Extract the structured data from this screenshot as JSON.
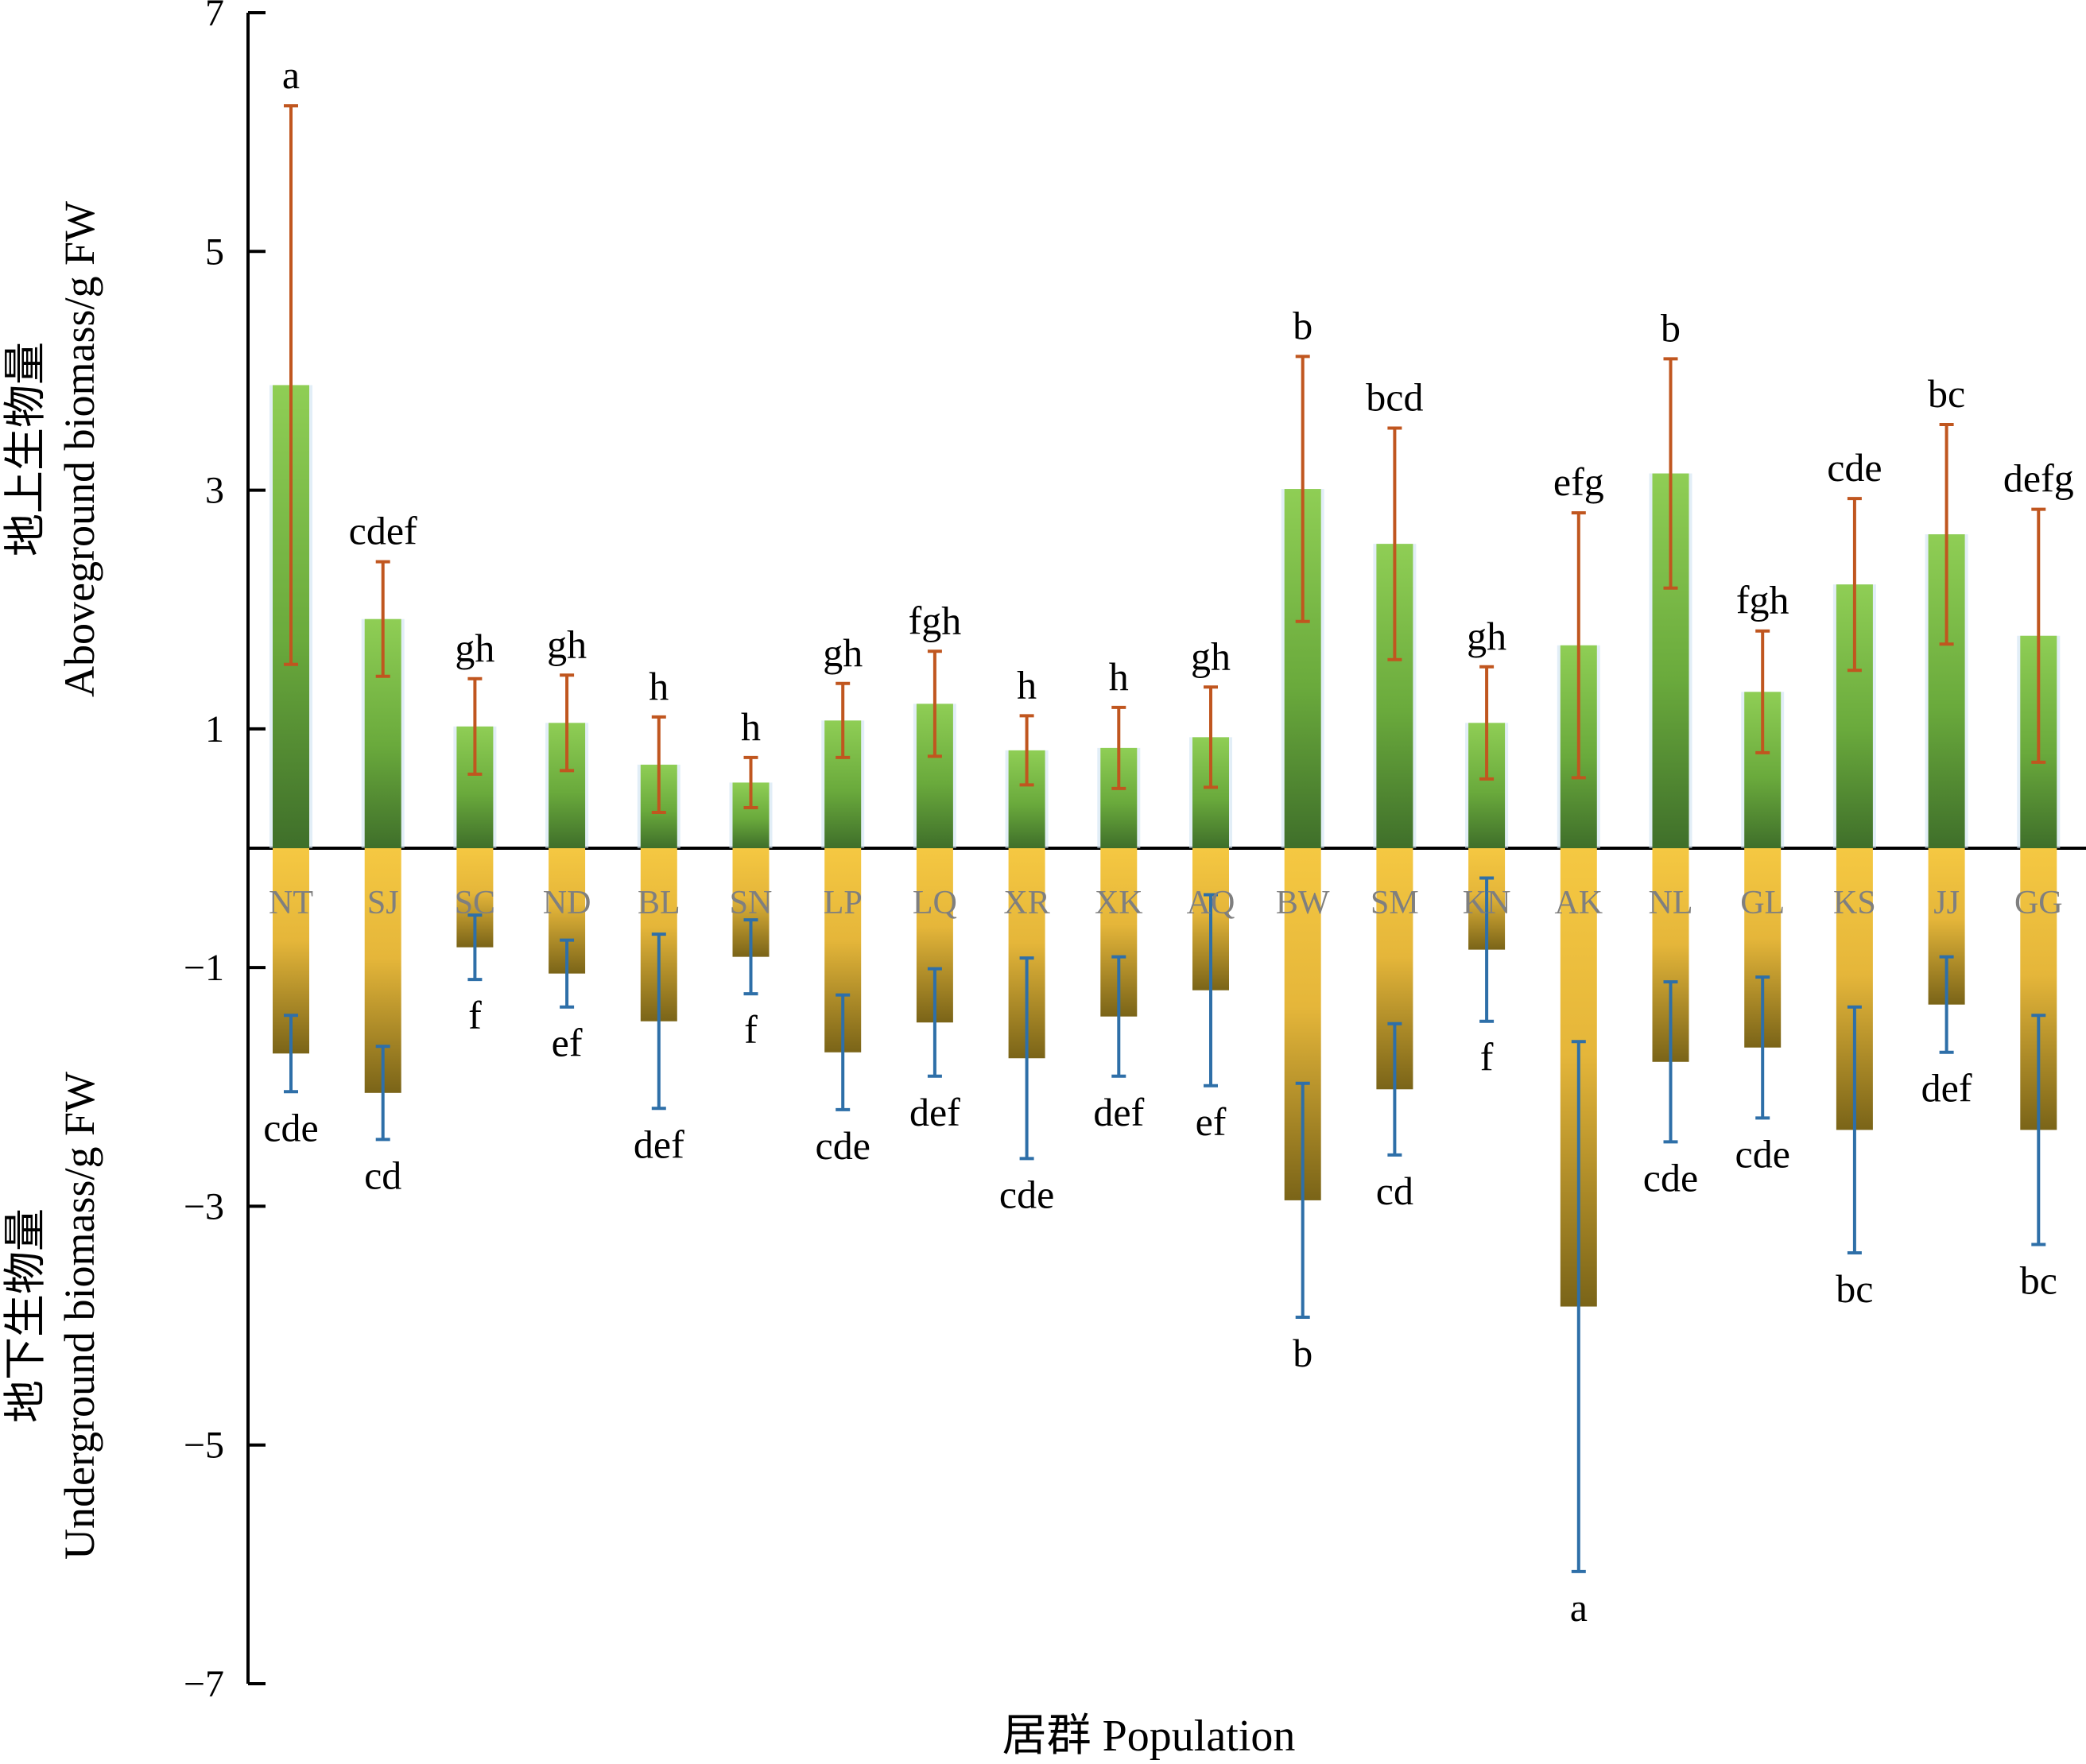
{
  "chart_data": {
    "type": "bar",
    "xlabel": "居群 Population",
    "ylabel_top": [
      "地上生物量",
      "Aboveground biomass/g FW"
    ],
    "ylabel_bottom": [
      "地下生物量",
      "Underground biomass/g FW"
    ],
    "ylim": [
      -7,
      7
    ],
    "yticks": [
      {
        "value": 7,
        "label": "7"
      },
      {
        "value": 5,
        "label": "5"
      },
      {
        "value": 3,
        "label": "3"
      },
      {
        "value": 1,
        "label": "1"
      },
      {
        "value": -1,
        "label": "−1"
      },
      {
        "value": -3,
        "label": "−3"
      },
      {
        "value": -5,
        "label": "−5"
      },
      {
        "value": -7,
        "label": "−7"
      }
    ],
    "categories": [
      "NT",
      "SJ",
      "SC",
      "ND",
      "BL",
      "SN",
      "LP",
      "LQ",
      "XR",
      "XK",
      "AQ",
      "BW",
      "SM",
      "KN",
      "AK",
      "NL",
      "GL",
      "KS",
      "JJ",
      "GG"
    ],
    "series": [
      {
        "values": [
          3.88,
          1.92,
          1.02,
          1.05,
          0.7,
          0.55,
          1.07,
          1.21,
          0.82,
          0.84,
          0.93,
          3.01,
          2.55,
          1.05,
          1.7,
          3.14,
          1.31,
          2.21,
          2.63,
          1.78
        ],
        "errors": [
          2.34,
          0.48,
          0.4,
          0.4,
          0.4,
          0.21,
          0.31,
          0.44,
          0.29,
          0.34,
          0.42,
          1.11,
          0.97,
          0.47,
          1.11,
          0.96,
          0.51,
          0.72,
          0.92,
          1.06
        ],
        "letters": [
          "a",
          "cdef",
          "gh",
          "gh",
          "h",
          "h",
          "gh",
          "fgh",
          "h",
          "h",
          "gh",
          "b",
          "bcd",
          "gh",
          "efg",
          "b",
          "fgh",
          "cde",
          "bc",
          "defg"
        ],
        "color": "#7dc142"
      },
      {
        "values": [
          -1.72,
          -2.05,
          -0.83,
          -1.05,
          -1.45,
          -0.91,
          -1.71,
          -1.46,
          -1.76,
          -1.41,
          -1.19,
          -2.95,
          -2.02,
          -0.85,
          -3.84,
          -1.79,
          -1.67,
          -2.36,
          -1.31,
          -2.36
        ],
        "errors": [
          0.32,
          0.39,
          0.27,
          0.28,
          0.73,
          0.31,
          0.48,
          0.45,
          0.84,
          0.5,
          0.8,
          0.98,
          0.55,
          0.6,
          2.22,
          0.67,
          0.59,
          1.03,
          0.4,
          0.96
        ],
        "letters": [
          "cde",
          "cd",
          "f",
          "ef",
          "def",
          "f",
          "cde",
          "def",
          "cde",
          "def",
          "ef",
          "b",
          "cd",
          "f",
          "a",
          "cde",
          "cde",
          "bc",
          "def",
          "bc"
        ],
        "color": "#f2c23c"
      }
    ],
    "colors": {
      "above_bar_top": "#8fce55",
      "above_bar_bottom": "#3f6f2a",
      "below_bar_top": "#f5c842",
      "below_bar_bottom": "#7a6418",
      "above_err": "#c0561f",
      "below_err": "#2e6fa8"
    }
  }
}
